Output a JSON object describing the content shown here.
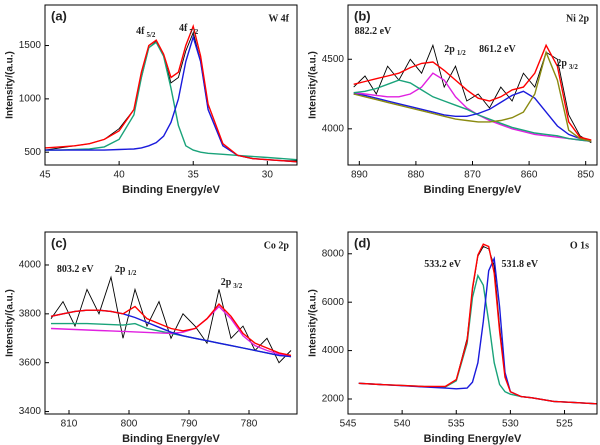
{
  "chart_data": [
    {
      "type": "line",
      "panel": "(a)",
      "label": "W 4f",
      "xlabel": "Binding Energy/eV",
      "ylabel": "Intensity/(a.u.)",
      "xlim": [
        45,
        28
      ],
      "xticks": [
        45,
        40,
        35,
        30
      ],
      "ylim": [
        380,
        1880
      ],
      "yticks": [
        500,
        1000,
        1500
      ],
      "annotations": [
        {
          "text": "4f",
          "sub": "5/2"
        },
        {
          "text": "4f",
          "sub": "7/2"
        }
      ],
      "x": [
        45,
        44,
        43,
        42,
        41,
        40,
        39,
        38.5,
        38,
        37.5,
        37,
        36.5,
        36,
        35.5,
        35,
        34.5,
        34,
        33,
        32,
        31,
        30,
        29,
        28
      ],
      "series": [
        {
          "color": "#000000",
          "values": [
            520,
            540,
            560,
            580,
            620,
            720,
            900,
            1200,
            1480,
            1540,
            1400,
            1150,
            1200,
            1450,
            1620,
            1350,
            900,
            560,
            470,
            440,
            430,
            420,
            420
          ]
        },
        {
          "color": "#1aa37a",
          "values": [
            520,
            520,
            525,
            530,
            550,
            620,
            850,
            1200,
            1480,
            1530,
            1400,
            1100,
            750,
            560,
            520,
            500,
            490,
            480,
            470,
            460,
            450,
            440,
            430
          ]
        },
        {
          "color": "#1a1adc",
          "values": [
            520,
            520,
            520,
            520,
            520,
            525,
            530,
            540,
            560,
            590,
            650,
            780,
            1000,
            1350,
            1580,
            1350,
            900,
            560,
            470,
            440,
            430,
            420,
            410
          ]
        },
        {
          "color": "#ff0000",
          "values": [
            540,
            550,
            560,
            580,
            620,
            700,
            900,
            1250,
            1500,
            1550,
            1420,
            1200,
            1250,
            1500,
            1680,
            1400,
            950,
            580,
            470,
            440,
            430,
            420,
            410
          ]
        }
      ]
    },
    {
      "type": "line",
      "panel": "(b)",
      "label": "Ni 2p",
      "xlabel": "Binding Energy/eV",
      "ylabel": "Intensity/(a.u.)",
      "xlim": [
        892,
        848
      ],
      "xticks": [
        890,
        880,
        870,
        860,
        850
      ],
      "ylim": [
        3740,
        4890
      ],
      "yticks": [
        4000,
        4500
      ],
      "annotations": [
        {
          "text": "882.2 eV"
        },
        {
          "text": "2p",
          "sub": "1/2"
        },
        {
          "text": "861.2 eV"
        },
        {
          "text": "2p",
          "sub": "3/2"
        }
      ],
      "x": [
        891,
        889,
        887,
        885,
        883,
        881,
        879,
        877,
        875,
        873,
        871,
        869,
        867,
        865,
        863,
        861,
        859,
        857,
        855,
        853,
        851,
        849
      ],
      "series": [
        {
          "color": "#000000",
          "values": [
            4300,
            4380,
            4250,
            4450,
            4350,
            4500,
            4400,
            4600,
            4300,
            4450,
            4200,
            4250,
            4150,
            4300,
            4200,
            4400,
            4300,
            4550,
            4500,
            4100,
            3950,
            3900
          ]
        },
        {
          "color": "#e020e0",
          "values": [
            4260,
            4250,
            4240,
            4230,
            4230,
            4250,
            4300,
            4400,
            4350,
            4230,
            4150,
            4100,
            4060,
            4030,
            4000,
            3980,
            3960,
            3950,
            3940,
            3930,
            3920,
            3910
          ]
        },
        {
          "color": "#1aa37a",
          "values": [
            4260,
            4270,
            4290,
            4320,
            4350,
            4330,
            4280,
            4230,
            4200,
            4170,
            4140,
            4100,
            4070,
            4040,
            4010,
            3990,
            3970,
            3960,
            3950,
            3930,
            3920,
            3910
          ]
        },
        {
          "color": "#1a1adc",
          "values": [
            4250,
            4240,
            4220,
            4200,
            4180,
            4160,
            4140,
            4120,
            4100,
            4090,
            4090,
            4110,
            4140,
            4190,
            4240,
            4270,
            4220,
            4120,
            4020,
            3960,
            3930,
            3910
          ]
        },
        {
          "color": "#8a8a10",
          "values": [
            4250,
            4230,
            4210,
            4190,
            4170,
            4150,
            4130,
            4110,
            4090,
            4070,
            4060,
            4050,
            4050,
            4060,
            4080,
            4120,
            4250,
            4550,
            4350,
            3990,
            3930,
            3910
          ]
        },
        {
          "color": "#ff0000",
          "values": [
            4320,
            4340,
            4360,
            4380,
            4400,
            4440,
            4470,
            4480,
            4420,
            4350,
            4280,
            4220,
            4200,
            4230,
            4280,
            4300,
            4400,
            4600,
            4450,
            4050,
            3940,
            3920
          ]
        }
      ]
    },
    {
      "type": "line",
      "panel": "(c)",
      "label": "Co 2p",
      "xlabel": "Binding Energy/eV",
      "ylabel": "Intensity/(a.u.)",
      "xlim": [
        814,
        772
      ],
      "xticks": [
        810,
        800,
        790,
        780
      ],
      "ylim": [
        3390,
        4135
      ],
      "yticks": [
        3400,
        3600,
        3800,
        4000
      ],
      "annotations": [
        {
          "text": "803.2 eV"
        },
        {
          "text": "2p",
          "sub": "1/2"
        },
        {
          "text": "2p",
          "sub": "3/2"
        }
      ],
      "x": [
        813,
        811,
        809,
        807,
        805,
        803,
        801,
        799,
        797,
        795,
        793,
        791,
        789,
        787,
        785,
        783,
        781,
        779,
        777,
        775,
        773
      ],
      "series": [
        {
          "color": "#000000",
          "values": [
            3780,
            3850,
            3750,
            3900,
            3800,
            3950,
            3700,
            3900,
            3750,
            3850,
            3700,
            3800,
            3750,
            3680,
            3900,
            3700,
            3750,
            3650,
            3700,
            3600,
            3650
          ]
        },
        {
          "color": "#1aa37a",
          "values": [
            3760,
            3760,
            3760,
            3760,
            3758,
            3756,
            3754,
            3760,
            3740,
            3730,
            3720,
            3710,
            3700,
            3690,
            3680,
            3670,
            3660,
            3650,
            3640,
            3630,
            3625
          ]
        },
        {
          "color": "#e020e0",
          "values": [
            3740,
            3738,
            3736,
            3734,
            3732,
            3730,
            3728,
            3726,
            3724,
            3722,
            3720,
            3725,
            3740,
            3780,
            3830,
            3780,
            3710,
            3670,
            3650,
            3635,
            3625
          ]
        },
        {
          "color": "#1a1adc",
          "values": [
            3790,
            3800,
            3810,
            3815,
            3815,
            3810,
            3800,
            3785,
            3765,
            3745,
            3725,
            3710,
            3700,
            3690,
            3680,
            3670,
            3660,
            3650,
            3640,
            3630,
            3625
          ]
        },
        {
          "color": "#ff0000",
          "values": [
            3790,
            3800,
            3810,
            3815,
            3815,
            3810,
            3800,
            3830,
            3780,
            3760,
            3740,
            3730,
            3740,
            3780,
            3840,
            3790,
            3720,
            3680,
            3660,
            3640,
            3630
          ]
        }
      ]
    },
    {
      "type": "line",
      "panel": "(d)",
      "label": "O 1s",
      "xlabel": "Binding Energy/eV",
      "ylabel": "Intensity/(a.u.)",
      "xlim": [
        545,
        522
      ],
      "xticks": [
        545,
        540,
        535,
        530,
        525
      ],
      "ylim": [
        1380,
        8900
      ],
      "yticks": [
        2000,
        4000,
        6000,
        8000
      ],
      "annotations": [
        {
          "text": "533.2 eV"
        },
        {
          "text": "531.8 eV"
        }
      ],
      "x": [
        544,
        542,
        540,
        538,
        536,
        535,
        534,
        533.5,
        533,
        532.5,
        532,
        531.5,
        531,
        530.5,
        530,
        529,
        528,
        526,
        524,
        522
      ],
      "series": [
        {
          "color": "#000000",
          "values": [
            2650,
            2600,
            2550,
            2500,
            2500,
            2800,
            4500,
            6500,
            7900,
            8300,
            8200,
            7500,
            5000,
            3000,
            2300,
            2100,
            2050,
            1900,
            1850,
            1800
          ]
        },
        {
          "color": "#1aa37a",
          "values": [
            2650,
            2600,
            2560,
            2520,
            2500,
            2750,
            4300,
            6200,
            7100,
            6700,
            5200,
            3500,
            2600,
            2300,
            2200,
            2100,
            2050,
            1900,
            1850,
            1800
          ]
        },
        {
          "color": "#1a1adc",
          "values": [
            2650,
            2600,
            2550,
            2500,
            2450,
            2420,
            2450,
            2700,
            3500,
            5200,
            7300,
            7800,
            5800,
            3100,
            2300,
            2100,
            2050,
            1900,
            1850,
            1800
          ]
        },
        {
          "color": "#ff0000",
          "values": [
            2650,
            2600,
            2560,
            2520,
            2520,
            2800,
            4400,
            6600,
            7950,
            8400,
            8300,
            7200,
            4800,
            2900,
            2300,
            2100,
            2050,
            1900,
            1850,
            1800
          ]
        }
      ]
    }
  ]
}
